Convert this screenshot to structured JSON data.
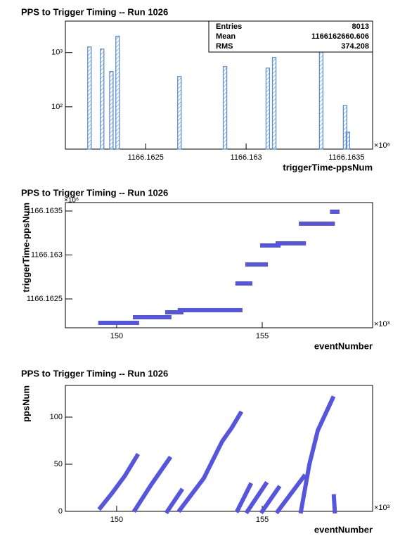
{
  "chart_data": [
    {
      "type": "bar",
      "title": "PPS to Trigger Timing -- Run 1026",
      "x_label": "triggerTime-ppsNum",
      "x_multiplier": "×10⁶",
      "x": [
        1166.16222,
        1166.162283,
        1166.162329,
        1166.16236,
        1166.162668,
        1166.162895,
        1166.163108,
        1166.16314,
        1166.163374,
        1166.163493,
        1166.163507
      ],
      "values": [
        1270,
        1160,
        447,
        2000,
        362,
        550,
        517,
        810,
        1160,
        106,
        34
      ],
      "color": "#5b8fd0",
      "log_y": true,
      "xlim": [
        1166.1621,
        1166.16363
      ],
      "xticks": [
        1166.1625,
        1166.163,
        1166.1635
      ],
      "ylim": [
        16.6,
        3800
      ],
      "yticks": [
        {
          "value": 100,
          "label": "10²"
        },
        {
          "value": 1000,
          "label": "10³"
        }
      ],
      "stats": [
        [
          "Entries",
          8013
        ],
        [
          "Mean",
          1166162660.606
        ],
        [
          "RMS",
          374.208
        ]
      ]
    },
    {
      "type": "line",
      "title": "PPS to Trigger Timing -- Run 1026",
      "x_label": "eventNumber",
      "y_label": "triggerTime-ppsNum",
      "x_multiplier": "×10³",
      "y_multiplier": "×10⁶",
      "x": [
        149.44,
        150.7,
        null,
        150.63,
        151.81,
        null,
        151.74,
        152.22,
        null,
        152.17,
        154.25,
        null,
        154.15,
        154.59,
        null,
        154.49,
        155.12,
        null,
        155.0,
        155.56,
        null,
        155.53,
        156.43,
        null,
        156.33,
        157.42,
        null,
        157.4,
        157.58
      ],
      "y": [
        1166.162228,
        1166.162228,
        null,
        1166.162292,
        1166.162292,
        null,
        1166.162348,
        1166.162348,
        null,
        1166.162372,
        1166.162372,
        null,
        1166.162676,
        1166.162676,
        null,
        1166.162892,
        1166.162892,
        null,
        1166.163108,
        1166.163108,
        null,
        1166.163132,
        1166.163132,
        null,
        1166.163356,
        1166.163356,
        null,
        1166.163492,
        1166.163492
      ],
      "color": "#5555dd",
      "xlim": [
        148.24,
        158.79
      ],
      "xticks": [
        150,
        155
      ],
      "ylim": [
        1166.162172,
        1166.163596
      ],
      "yticks": [
        1166.1625,
        1166.163,
        1166.1635
      ]
    },
    {
      "type": "line",
      "title": "PPS to Trigger Timing -- Run 1026",
      "x_label": "eventNumber",
      "y_label": "ppsNum",
      "x_multiplier": "×10³",
      "x": [
        149.44,
        149.86,
        150.29,
        150.7,
        null,
        150.63,
        151.18,
        151.81,
        null,
        151.74,
        152.22,
        null,
        152.17,
        152.99,
        153.62,
        153.96,
        154.25,
        null,
        154.15,
        154.59,
        null,
        154.49,
        155.12,
        null,
        155.0,
        155.56,
        null,
        155.53,
        156.43,
        null,
        156.33,
        156.62,
        156.91,
        157.15,
        157.42,
        null,
        157.46,
        157.49
      ],
      "y": [
        3.7,
        20,
        38,
        59,
        null,
        1.5,
        28,
        56,
        null,
        0,
        22,
        null,
        1.5,
        35,
        74,
        89,
        104,
        null,
        1,
        28,
        null,
        0,
        29,
        null,
        0,
        25,
        null,
        0,
        37,
        null,
        0,
        50,
        86,
        102,
        120,
        null,
        16,
        0
      ],
      "color": "#5555dd",
      "xlim": [
        148.24,
        158.79
      ],
      "xticks": [
        150,
        155
      ],
      "ylim": [
        0,
        133.6
      ],
      "yticks": [
        0,
        50,
        100
      ]
    }
  ]
}
